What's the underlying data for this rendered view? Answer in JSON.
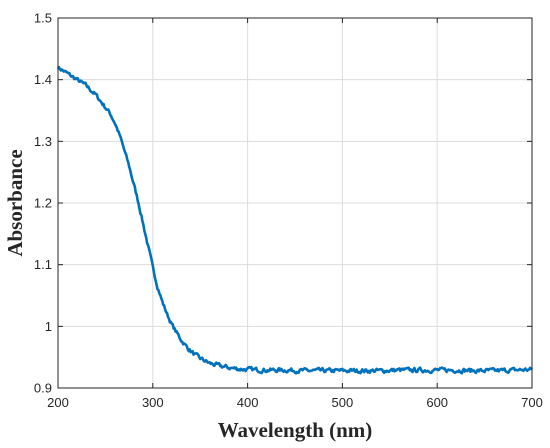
{
  "chart_data": {
    "type": "line",
    "title": "",
    "xlabel": "Wavelength (nm)",
    "ylabel": "Absorbance",
    "xlim": [
      200,
      700
    ],
    "ylim": [
      0.9,
      1.5
    ],
    "x_ticks": [
      200,
      300,
      400,
      500,
      600,
      700
    ],
    "x_tick_labels": [
      "200",
      "300",
      "400",
      "500",
      "600",
      "700"
    ],
    "y_ticks": [
      0.9,
      1.0,
      1.1,
      1.2,
      1.3,
      1.4,
      1.5
    ],
    "y_tick_labels": [
      "0.9",
      "1",
      "1.1",
      "1.2",
      "1.3",
      "1.4",
      "1.5"
    ],
    "grid": true,
    "legend": "none",
    "series": [
      {
        "color": "#0072BD",
        "x": [
          200,
          210,
          220,
          230,
          240,
          250,
          255,
          260,
          265,
          270,
          275,
          280,
          285,
          290,
          295,
          300,
          305,
          310,
          315,
          320,
          325,
          330,
          335,
          340,
          345,
          350,
          360,
          370,
          380,
          390,
          400,
          420,
          440,
          460,
          480,
          500,
          520,
          540,
          560,
          580,
          600,
          620,
          640,
          660,
          680,
          700
        ],
        "values": [
          1.42,
          1.41,
          1.4,
          1.39,
          1.375,
          1.355,
          1.345,
          1.33,
          1.31,
          1.285,
          1.26,
          1.23,
          1.2,
          1.165,
          1.13,
          1.095,
          1.065,
          1.04,
          1.02,
          1.003,
          0.99,
          0.978,
          0.968,
          0.96,
          0.953,
          0.948,
          0.94,
          0.936,
          0.933,
          0.931,
          0.93,
          0.929,
          0.929,
          0.928,
          0.928,
          0.928,
          0.928,
          0.928,
          0.929,
          0.929,
          0.929,
          0.929,
          0.928,
          0.928,
          0.929,
          0.93
        ]
      }
    ]
  }
}
